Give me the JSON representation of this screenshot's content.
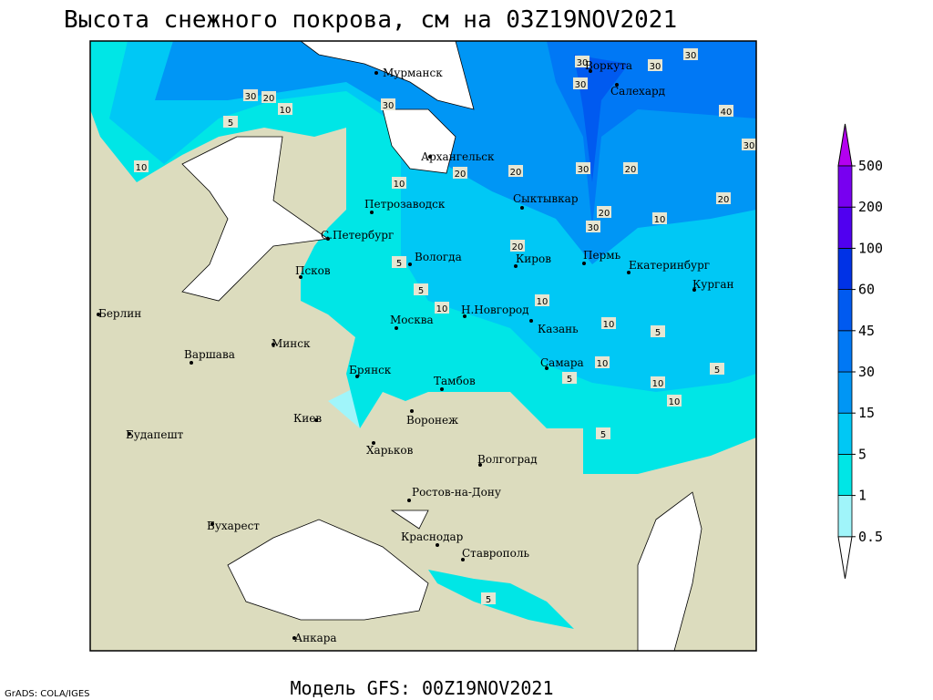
{
  "header": {
    "title": "Высота снежного покрова, см на 03Z19NOV2021"
  },
  "footer": {
    "model": "Модель GFS: 00Z19NOV2021",
    "credit": "GrADS: COLA/IGES"
  },
  "legend": {
    "levels": [
      0.5,
      1,
      5,
      15,
      30,
      45,
      60,
      100,
      200,
      500
    ],
    "colors": [
      "#ffffff",
      "#a0f5fa",
      "#00e6e6",
      "#00c8f5",
      "#0096f5",
      "#0078f5",
      "#005af0",
      "#0032e6",
      "#5000f0",
      "#7800f0",
      "#b400f0"
    ]
  },
  "cities": [
    "Мурманск",
    "Воркута",
    "Салехард",
    "Архангельск",
    "Сыктывкар",
    "Петрозаводск",
    "С.Петербург",
    "Вологда",
    "Киров",
    "Пермь",
    "Екатеринбург",
    "Псков",
    "Курган",
    "Берлин",
    "Н.Новгород",
    "Казань",
    "Москва",
    "Минск",
    "Варшава",
    "Самара",
    "Брянск",
    "Тамбов",
    "Киев",
    "Воронеж",
    "Будапешт",
    "Харьков",
    "Волгоград",
    "Ростов-на-Дону",
    "Бухарест",
    "Краснодар",
    "Ставрополь",
    "Анкара"
  ],
  "contour_labels": [
    30,
    20,
    10,
    5,
    10,
    30,
    30,
    30,
    30,
    30,
    40,
    30,
    20,
    20,
    30,
    20,
    20,
    10,
    20,
    30,
    20,
    10,
    5,
    5,
    10,
    10,
    10,
    5,
    5,
    10,
    5,
    10,
    10,
    5,
    5
  ]
}
